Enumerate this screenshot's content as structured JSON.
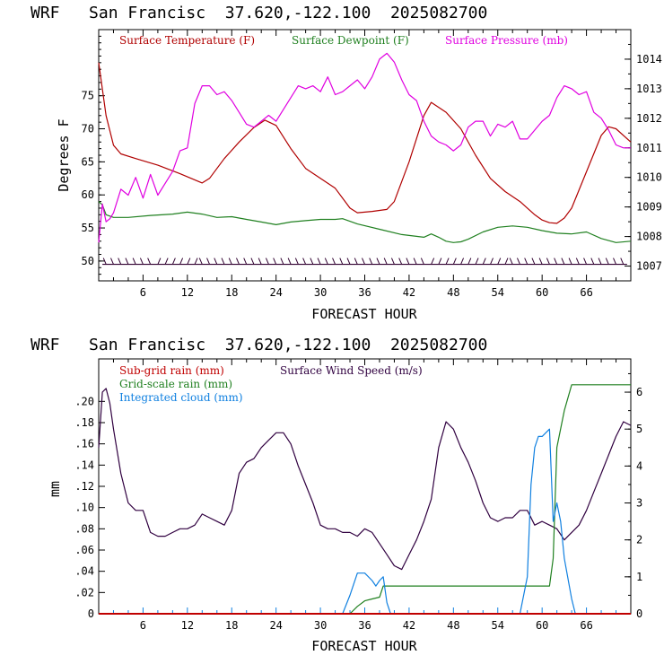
{
  "top_title": "WRF   San Francisc  37.620,-122.100  2025082700",
  "bottom_title": "WRF   San Francisc  37.620,-122.100  2025082700",
  "colors": {
    "temperature": "#b00000",
    "dewpoint": "#208020",
    "pressure": "#e000e0",
    "wind_barbs": "#300030",
    "subgrid_rain": "#c00000",
    "wind_speed": "#300040",
    "gridscale_rain": "#208020",
    "cloud": "#1080e0",
    "axis": "#000000"
  },
  "chart_data": [
    {
      "type": "line",
      "xlabel": "FORECAST HOUR",
      "ylabel": "Degrees F",
      "xlim": [
        0,
        72
      ],
      "ylim": [
        47,
        85
      ],
      "y2lim": [
        1006.5,
        1015
      ],
      "xticks": [
        6,
        12,
        18,
        24,
        30,
        36,
        42,
        48,
        54,
        60,
        66
      ],
      "yticks": [
        50,
        55,
        60,
        65,
        70,
        75
      ],
      "y2ticks": [
        1007,
        1008,
        1009,
        1010,
        1011,
        1012,
        1013,
        1014
      ],
      "legend": [
        "Surface Temperature (F)",
        "Surface Dewpoint (F)",
        "Surface Pressure (mb)"
      ],
      "wind_barb_level": 49.5,
      "series": [
        {
          "name": "Surface Temperature (F)",
          "axis": "left",
          "x": [
            0,
            1,
            2,
            3,
            5,
            8,
            11,
            14,
            15,
            17,
            19,
            21,
            22.5,
            24,
            26,
            28,
            30,
            32,
            34,
            35,
            37,
            39,
            40,
            42,
            44,
            45,
            47,
            49,
            51,
            53,
            55,
            57,
            59,
            60,
            61,
            62,
            63,
            64,
            66,
            68,
            69,
            70,
            72
          ],
          "values": [
            80,
            72,
            67.5,
            66.2,
            65.5,
            64.5,
            63.2,
            61.8,
            62.5,
            65.5,
            68,
            70.2,
            71.3,
            70.5,
            67,
            64,
            62.5,
            61,
            58,
            57.3,
            57.5,
            57.8,
            59,
            65,
            72,
            74,
            72.5,
            70,
            66,
            62.5,
            60.5,
            59,
            57,
            56.2,
            55.8,
            55.7,
            56.5,
            58,
            63.5,
            69,
            70.3,
            70,
            68
          ]
        },
        {
          "name": "Surface Dewpoint (F)",
          "axis": "left",
          "x": [
            0,
            0.5,
            1,
            2,
            4,
            7,
            10,
            12,
            14,
            16,
            18,
            20,
            22,
            24,
            26,
            28,
            30,
            32,
            33,
            35,
            38,
            41,
            44,
            45,
            46,
            47,
            48,
            49,
            50,
            52,
            54,
            56,
            58,
            60,
            62,
            64,
            66,
            68,
            70,
            72
          ],
          "values": [
            59,
            58.5,
            57,
            56.6,
            56.6,
            56.9,
            57.1,
            57.4,
            57.1,
            56.6,
            56.7,
            56.3,
            55.9,
            55.5,
            55.9,
            56.1,
            56.3,
            56.3,
            56.4,
            55.6,
            54.8,
            54,
            53.6,
            54.1,
            53.6,
            53,
            52.8,
            52.9,
            53.3,
            54.4,
            55.1,
            55.3,
            55.1,
            54.6,
            54.2,
            54.1,
            54.4,
            53.4,
            52.8,
            53
          ]
        },
        {
          "name": "Surface Pressure (mb)",
          "axis": "right",
          "x": [
            0,
            0.5,
            1,
            1.5,
            2,
            3,
            4,
            5,
            6,
            7,
            8,
            9,
            10,
            11,
            12,
            13,
            14,
            15,
            16,
            17,
            18,
            19,
            20,
            21,
            22,
            23,
            24,
            25,
            26,
            27,
            28,
            29,
            30,
            31,
            32,
            33,
            34,
            35,
            36,
            37,
            38,
            39,
            40,
            41,
            42,
            43,
            44,
            45,
            46,
            47,
            48,
            49,
            50,
            51,
            52,
            53,
            54,
            55,
            56,
            57,
            58,
            59,
            60,
            61,
            62,
            63,
            64,
            65,
            66,
            67,
            68,
            69,
            70,
            71,
            72
          ],
          "values": [
            1007.8,
            1009.1,
            1008.5,
            1008.6,
            1008.8,
            1009.6,
            1009.4,
            1010,
            1009.3,
            1010.1,
            1009.4,
            1009.8,
            1010.2,
            1010.9,
            1011,
            1012.5,
            1013.1,
            1013.1,
            1012.8,
            1012.9,
            1012.6,
            1012.2,
            1011.8,
            1011.7,
            1011.9,
            1012.1,
            1011.9,
            1012.3,
            1012.7,
            1013.1,
            1013,
            1013.1,
            1012.9,
            1013.4,
            1012.8,
            1012.9,
            1013.1,
            1013.3,
            1013,
            1013.4,
            1014,
            1014.2,
            1013.9,
            1013.3,
            1012.8,
            1012.6,
            1011.9,
            1011.4,
            1011.2,
            1011.1,
            1010.9,
            1011.1,
            1011.7,
            1011.9,
            1011.9,
            1011.4,
            1011.8,
            1011.7,
            1011.9,
            1011.3,
            1011.3,
            1011.6,
            1011.9,
            1012.1,
            1012.7,
            1013.1,
            1013,
            1012.8,
            1012.9,
            1012.2,
            1012,
            1011.6,
            1011.1,
            1011,
            1011
          ]
        }
      ]
    },
    {
      "type": "line",
      "xlabel": "FORECAST HOUR",
      "ylabel": "mm",
      "xlim": [
        0,
        72
      ],
      "ylim": [
        0,
        0.24
      ],
      "y2lim": [
        0,
        6.9
      ],
      "xticks": [
        6,
        12,
        18,
        24,
        30,
        36,
        42,
        48,
        54,
        60,
        66
      ],
      "yticks": [
        0,
        0.02,
        0.04,
        0.06,
        0.08,
        0.1,
        0.12,
        0.14,
        0.16,
        0.18,
        0.2
      ],
      "ytick_labels": [
        "0",
        ".02",
        ".04",
        ".06",
        ".08",
        ".10",
        ".12",
        ".14",
        ".16",
        ".18",
        ".20"
      ],
      "y2ticks": [
        0,
        1,
        2,
        3,
        4,
        5,
        6
      ],
      "legend": [
        "Sub-grid rain (mm)",
        "Surface Wind Speed (m/s)",
        "Grid-scale rain (mm)",
        "Integrated cloud (mm)"
      ],
      "series": [
        {
          "name": "Surface Wind Speed (m/s)",
          "axis": "right",
          "x": [
            0,
            0.5,
            1,
            1.5,
            2,
            3,
            4,
            5,
            6,
            7,
            8,
            9,
            10,
            11,
            12,
            13,
            14,
            15,
            16,
            17,
            18,
            19,
            20,
            21,
            22,
            23,
            24,
            25,
            26,
            27,
            28,
            29,
            30,
            31,
            32,
            33,
            34,
            35,
            36,
            37,
            38,
            39,
            40,
            41,
            42,
            43,
            44,
            45,
            46,
            47,
            48,
            49,
            50,
            51,
            52,
            53,
            54,
            55,
            56,
            57,
            58,
            59,
            60,
            61,
            62,
            63,
            64,
            65,
            66,
            67,
            68,
            69,
            70,
            71,
            72
          ],
          "values": [
            4.5,
            6,
            6.1,
            5.7,
            5,
            3.8,
            3,
            2.8,
            2.8,
            2.2,
            2.1,
            2.1,
            2.2,
            2.3,
            2.3,
            2.4,
            2.7,
            2.6,
            2.5,
            2.4,
            2.8,
            3.8,
            4.1,
            4.2,
            4.5,
            4.7,
            4.9,
            4.9,
            4.6,
            4,
            3.5,
            3,
            2.4,
            2.3,
            2.3,
            2.2,
            2.2,
            2.1,
            2.3,
            2.2,
            1.9,
            1.6,
            1.3,
            1.2,
            1.6,
            2,
            2.5,
            3.1,
            4.5,
            5.2,
            5,
            4.5,
            4.1,
            3.6,
            3,
            2.6,
            2.5,
            2.6,
            2.6,
            2.8,
            2.8,
            2.4,
            2.5,
            2.4,
            2.3,
            2,
            2.2,
            2.4,
            2.8,
            3.3,
            3.8,
            4.3,
            4.8,
            5.2,
            5.1
          ]
        },
        {
          "name": "Grid-scale rain (mm)",
          "axis": "right",
          "x": [
            0,
            34,
            35,
            36,
            37,
            38,
            38.5,
            39,
            61,
            61.5,
            62,
            63,
            64,
            72
          ],
          "values": [
            0,
            0,
            0.2,
            0.35,
            0.4,
            0.45,
            0.75,
            0.75,
            0.75,
            1.5,
            4.5,
            5.5,
            6.2,
            6.2
          ]
        },
        {
          "name": "Integrated cloud (mm)",
          "axis": "right",
          "x": [
            0,
            33,
            34,
            35,
            36,
            37,
            37.5,
            38,
            38.5,
            39,
            39.5,
            40,
            57,
            58,
            58.5,
            59,
            59.5,
            60,
            61,
            61.5,
            62,
            62.5,
            63,
            64,
            64.5,
            72
          ],
          "values": [
            0,
            0,
            0.5,
            1.1,
            1.1,
            0.9,
            0.75,
            0.9,
            1,
            0.3,
            0,
            0,
            0,
            1,
            3.5,
            4.5,
            4.8,
            4.8,
            5,
            2.5,
            3,
            2.5,
            1.5,
            0.4,
            0,
            0
          ]
        },
        {
          "name": "Sub-grid rain (mm)",
          "axis": "left",
          "x": [
            0,
            72
          ],
          "values": [
            0,
            0
          ]
        }
      ]
    }
  ]
}
